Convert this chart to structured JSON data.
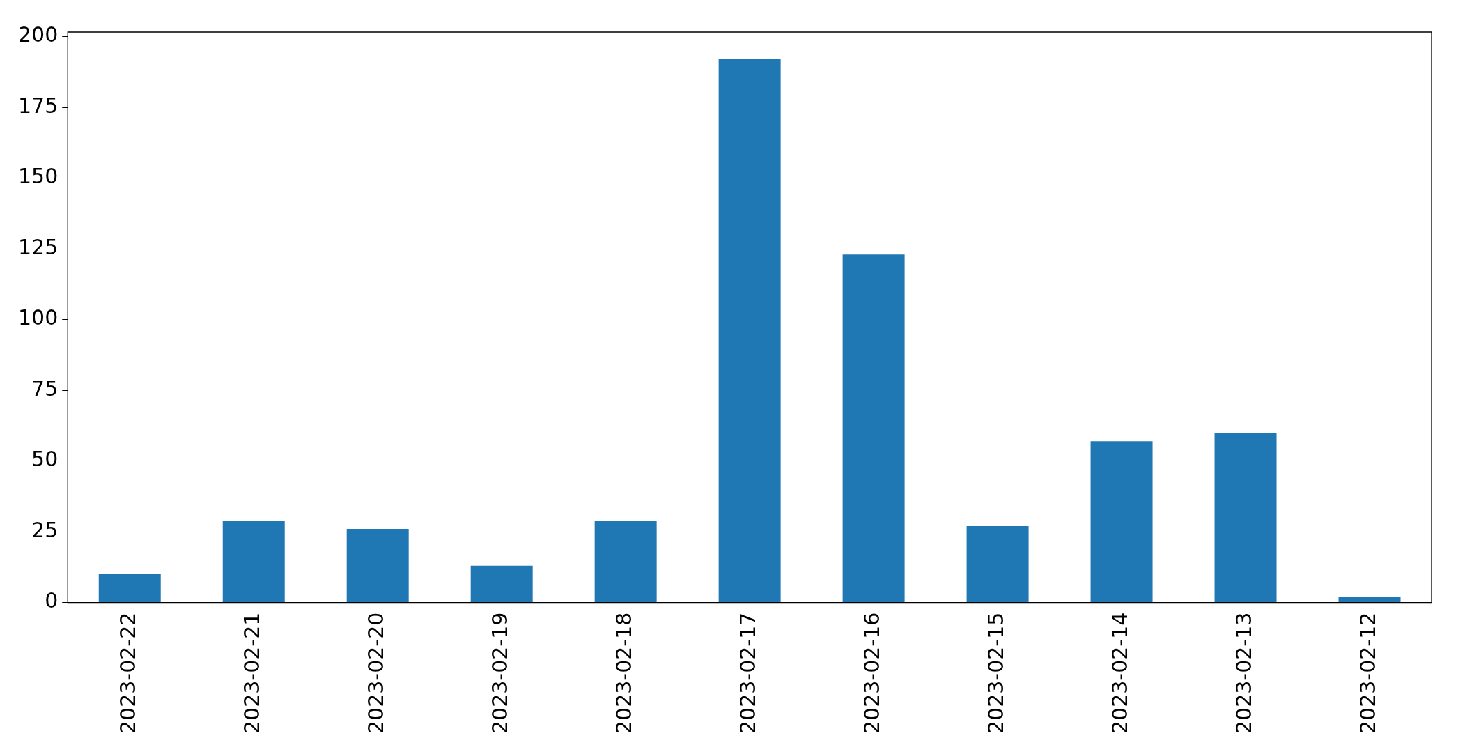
{
  "chart_data": {
    "type": "bar",
    "categories": [
      "2023-02-22",
      "2023-02-21",
      "2023-02-20",
      "2023-02-19",
      "2023-02-18",
      "2023-02-17",
      "2023-02-16",
      "2023-02-15",
      "2023-02-14",
      "2023-02-13",
      "2023-02-12"
    ],
    "values": [
      10,
      29,
      26,
      13,
      29,
      192,
      123,
      27,
      57,
      60,
      2
    ],
    "color": "#1f77b4",
    "ylim": [
      0,
      201.6
    ],
    "yticks": [
      0,
      25,
      50,
      75,
      100,
      125,
      150,
      175,
      200
    ],
    "grid": false,
    "legend": false
  }
}
